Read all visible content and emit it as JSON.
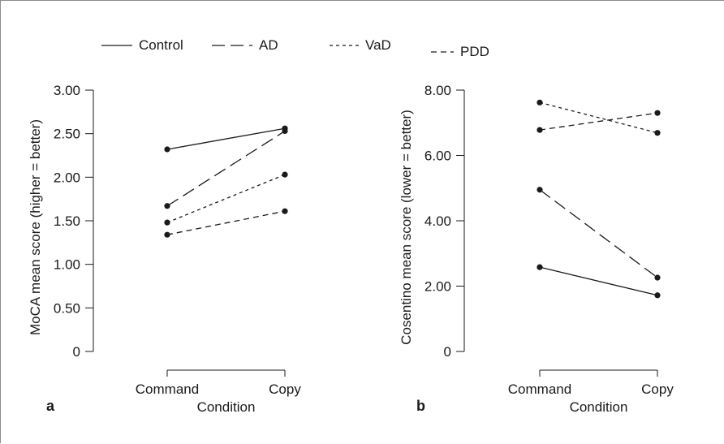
{
  "legend": [
    {
      "label": "Control",
      "dash": "solid"
    },
    {
      "label": "AD",
      "dash": "long-dash"
    },
    {
      "label": "VaD",
      "dash": "short-dash"
    },
    {
      "label": "PDD",
      "dash": "medium-dash"
    }
  ],
  "chart_data": [
    {
      "type": "line",
      "panel": "a",
      "categories": [
        "Command",
        "Copy"
      ],
      "xlabel": "Condition",
      "ylabel": "MoCA mean score (higher = better)",
      "ylim": [
        0,
        3.0
      ],
      "yticks": [
        "0",
        "0.50",
        "1.00",
        "1.50",
        "2.00",
        "2.50",
        "3.00"
      ],
      "grid": false,
      "legend_position": "top",
      "series": [
        {
          "name": "Control",
          "values": [
            2.32,
            2.56
          ]
        },
        {
          "name": "AD",
          "values": [
            1.67,
            2.53
          ]
        },
        {
          "name": "VaD",
          "values": [
            1.48,
            2.03
          ]
        },
        {
          "name": "PDD",
          "values": [
            1.34,
            1.61
          ]
        }
      ]
    },
    {
      "type": "line",
      "panel": "b",
      "categories": [
        "Command",
        "Copy"
      ],
      "xlabel": "Condition",
      "ylabel": "Cosentino mean score (lower = better)",
      "ylim": [
        0,
        8.0
      ],
      "yticks": [
        "0",
        "2.00",
        "4.00",
        "6.00",
        "8.00"
      ],
      "grid": false,
      "legend_position": "top",
      "series": [
        {
          "name": "Control",
          "values": [
            2.58,
            1.72
          ]
        },
        {
          "name": "AD",
          "values": [
            4.95,
            2.26
          ]
        },
        {
          "name": "VaD",
          "values": [
            7.62,
            6.69
          ]
        },
        {
          "name": "PDD",
          "values": [
            6.78,
            7.3
          ]
        }
      ]
    }
  ]
}
